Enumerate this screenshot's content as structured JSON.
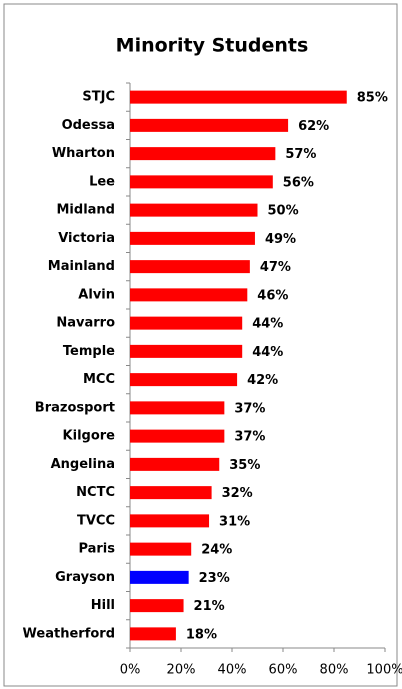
{
  "chart_data": {
    "type": "barh",
    "title": "Minority Students",
    "categories": [
      "STJC",
      "Odessa",
      "Wharton",
      "Lee",
      "Midland",
      "Victoria",
      "Mainland",
      "Alvin",
      "Navarro",
      "Temple",
      "MCC",
      "Brazosport",
      "Kilgore",
      "Angelina",
      "NCTC",
      "TVCC",
      "Paris",
      "Grayson",
      "Hill",
      "Weatherford"
    ],
    "values": [
      85,
      62,
      57,
      56,
      50,
      49,
      47,
      46,
      44,
      44,
      42,
      37,
      37,
      35,
      32,
      31,
      24,
      23,
      21,
      18
    ],
    "value_labels": [
      "85%",
      "62%",
      "57%",
      "56%",
      "50%",
      "49%",
      "47%",
      "46%",
      "44%",
      "44%",
      "42%",
      "37%",
      "37%",
      "35%",
      "32%",
      "31%",
      "24%",
      "23%",
      "21%",
      "18%"
    ],
    "colors": [
      "#ff0000",
      "#ff0000",
      "#ff0000",
      "#ff0000",
      "#ff0000",
      "#ff0000",
      "#ff0000",
      "#ff0000",
      "#ff0000",
      "#ff0000",
      "#ff0000",
      "#ff0000",
      "#ff0000",
      "#ff0000",
      "#ff0000",
      "#ff0000",
      "#ff0000",
      "#0000ff",
      "#ff0000",
      "#ff0000"
    ],
    "xlim": [
      0,
      100
    ],
    "xticks": [
      {
        "value": 0,
        "label": "0%"
      },
      {
        "value": 20,
        "label": "20%"
      },
      {
        "value": 40,
        "label": "40%"
      },
      {
        "value": 60,
        "label": "60%"
      },
      {
        "value": 80,
        "label": "80%"
      },
      {
        "value": 100,
        "label": "100%"
      }
    ]
  }
}
